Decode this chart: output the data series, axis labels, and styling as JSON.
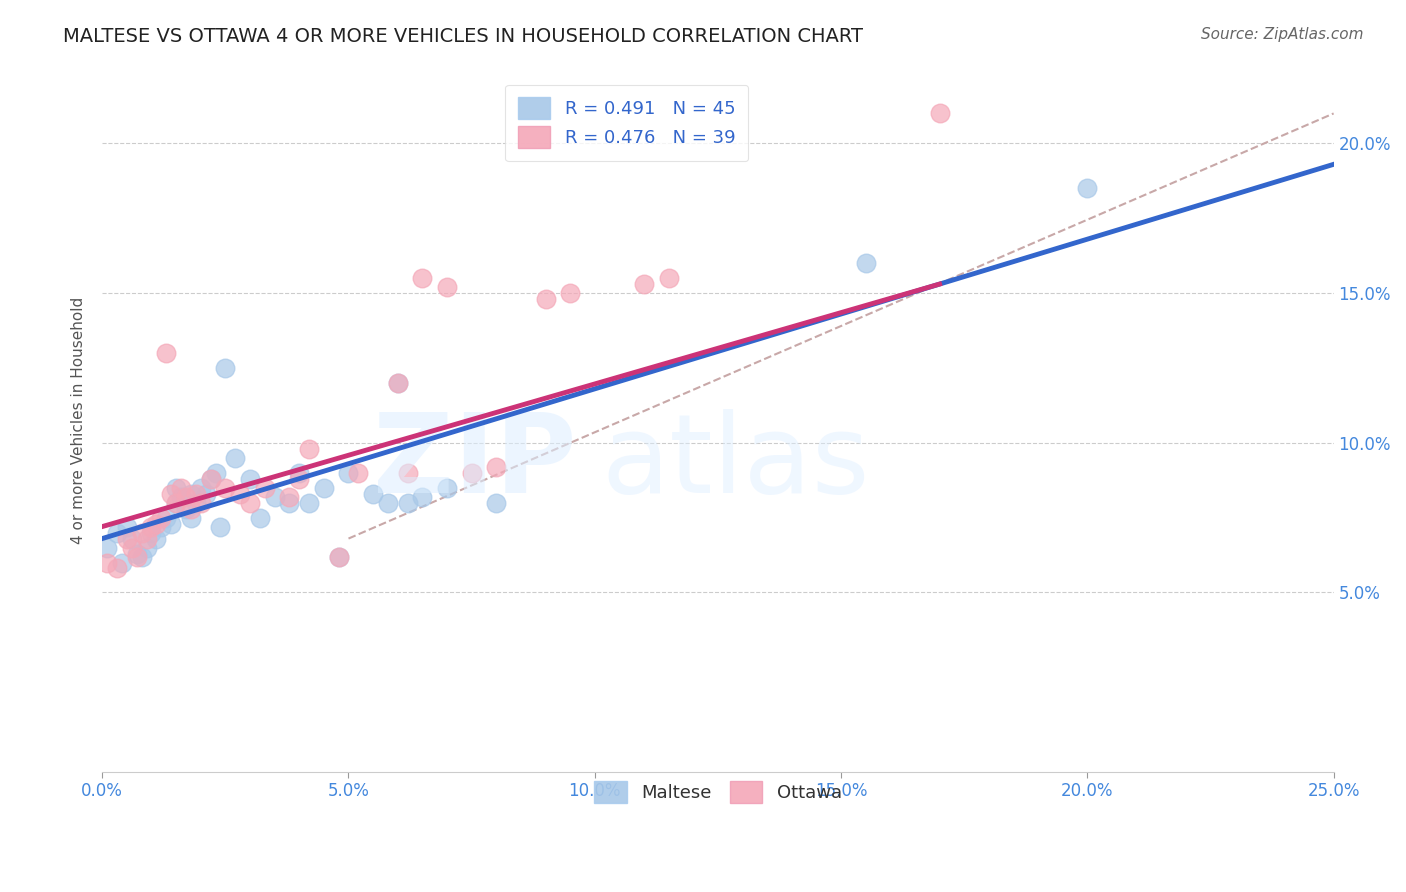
{
  "title": "MALTESE VS OTTAWA 4 OR MORE VEHICLES IN HOUSEHOLD CORRELATION CHART",
  "source": "Source: ZipAtlas.com",
  "ylabel": "4 or more Vehicles in Household",
  "xlim": [
    0.0,
    0.25
  ],
  "ylim": [
    -0.01,
    0.225
  ],
  "xticks": [
    0.0,
    0.05,
    0.1,
    0.15,
    0.2,
    0.25
  ],
  "yticks": [
    0.05,
    0.1,
    0.15,
    0.2
  ],
  "xtick_labels": [
    "0.0%",
    "5.0%",
    "10.0%",
    "15.0%",
    "20.0%",
    "25.0%"
  ],
  "ytick_labels": [
    "5.0%",
    "10.0%",
    "15.0%",
    "20.0%"
  ],
  "blue_R": 0.491,
  "blue_N": 45,
  "pink_R": 0.476,
  "pink_N": 39,
  "blue_color": "#a8c8e8",
  "pink_color": "#f4a8b8",
  "blue_line_color": "#3366cc",
  "pink_line_color": "#cc3377",
  "dashed_line_color": "#c8a8a8",
  "blue_x": [
    0.001,
    0.003,
    0.004,
    0.005,
    0.006,
    0.007,
    0.008,
    0.009,
    0.01,
    0.011,
    0.012,
    0.013,
    0.014,
    0.015,
    0.015,
    0.016,
    0.017,
    0.018,
    0.018,
    0.019,
    0.02,
    0.021,
    0.022,
    0.023,
    0.024,
    0.025,
    0.027,
    0.03,
    0.032,
    0.035,
    0.038,
    0.04,
    0.042,
    0.045,
    0.048,
    0.05,
    0.055,
    0.058,
    0.06,
    0.062,
    0.065,
    0.07,
    0.08,
    0.155,
    0.2
  ],
  "blue_y": [
    0.065,
    0.07,
    0.06,
    0.072,
    0.068,
    0.063,
    0.062,
    0.065,
    0.07,
    0.068,
    0.072,
    0.075,
    0.073,
    0.08,
    0.085,
    0.082,
    0.078,
    0.075,
    0.083,
    0.08,
    0.085,
    0.083,
    0.088,
    0.09,
    0.072,
    0.125,
    0.095,
    0.088,
    0.075,
    0.082,
    0.08,
    0.09,
    0.08,
    0.085,
    0.062,
    0.09,
    0.083,
    0.08,
    0.12,
    0.08,
    0.082,
    0.085,
    0.08,
    0.16,
    0.185
  ],
  "pink_x": [
    0.001,
    0.003,
    0.005,
    0.006,
    0.007,
    0.008,
    0.009,
    0.01,
    0.011,
    0.012,
    0.013,
    0.014,
    0.015,
    0.016,
    0.017,
    0.018,
    0.019,
    0.02,
    0.022,
    0.025,
    0.028,
    0.03,
    0.033,
    0.038,
    0.04,
    0.042,
    0.048,
    0.052,
    0.06,
    0.062,
    0.065,
    0.07,
    0.075,
    0.08,
    0.09,
    0.095,
    0.11,
    0.115,
    0.17
  ],
  "pink_y": [
    0.06,
    0.058,
    0.068,
    0.065,
    0.062,
    0.07,
    0.068,
    0.072,
    0.073,
    0.075,
    0.13,
    0.083,
    0.08,
    0.085,
    0.082,
    0.078,
    0.083,
    0.08,
    0.088,
    0.085,
    0.083,
    0.08,
    0.085,
    0.082,
    0.088,
    0.098,
    0.062,
    0.09,
    0.12,
    0.09,
    0.155,
    0.152,
    0.09,
    0.092,
    0.148,
    0.15,
    0.153,
    0.155,
    0.21
  ],
  "blue_trend_x": [
    0.0,
    0.25
  ],
  "blue_trend_y": [
    0.068,
    0.193
  ],
  "pink_trend_x": [
    0.0,
    0.17
  ],
  "pink_trend_y": [
    0.072,
    0.153
  ],
  "dashed_trend_x": [
    0.05,
    0.25
  ],
  "dashed_trend_y": [
    0.068,
    0.21
  ]
}
